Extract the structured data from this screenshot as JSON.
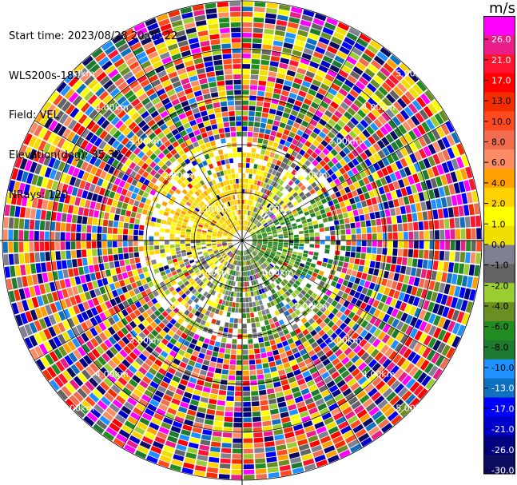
{
  "header": {
    "start_time": "Start time: 2023/08/28 20:00:22",
    "instrument": "WLS200s-181",
    "field": "Field: VEL",
    "elevation": "Elevation(deg): 35.30",
    "nrays": "NRays: 120"
  },
  "colorbar": {
    "unit": "m/s",
    "ticks": [
      "26.0",
      "21.0",
      "17.0",
      "13.0",
      "10.0",
      "8.0",
      "6.0",
      "4.0",
      "2.0",
      "1.0",
      "0.0",
      "-1.0",
      "-2.0",
      "-4.0",
      "-6.0",
      "-8.0",
      "-10.0",
      "-13.0",
      "-17.0",
      "-21.0",
      "-26.0",
      "-30.0"
    ],
    "colors": [
      "#ff00ff",
      "#e91e8a",
      "#ff1430",
      "#ff0000",
      "#f22d00",
      "#ff4a20",
      "#f26d50",
      "#fb8c64",
      "#ffa000",
      "#ffd200",
      "#ffff00",
      "#f0e000",
      "#7f8090",
      "#646464",
      "#9acd32",
      "#6b8e23",
      "#228b22",
      "#1e7a2e",
      "#1e90ff",
      "#1070c0",
      "#0000ff",
      "#0000cd",
      "#000080",
      "#0d0d60"
    ]
  },
  "ppi": {
    "ring_labels": [
      "1.00km",
      "2.00km",
      "3.00km",
      "4.00km",
      "5.00km"
    ],
    "rays": 120
  },
  "chart_data": {
    "type": "heatmap",
    "title": "",
    "field": "VEL",
    "unit": "m/s",
    "polar": true,
    "nrays": 120,
    "range_rings_km": [
      1,
      2,
      3,
      4,
      5
    ],
    "colorbar_levels": [
      26,
      21,
      17,
      13,
      10,
      8,
      6,
      4,
      2,
      1,
      0,
      -1,
      -2,
      -4,
      -6,
      -8,
      -10,
      -13,
      -17,
      -21,
      -26,
      -30
    ],
    "near_field_pattern": {
      "north_west": "positive (2 to 4 m/s, yellow)",
      "east": "negative (-4 to -8 m/s, green)",
      "south": "near zero / negative (gray, olive)"
    },
    "far_field": "noise (mixed colors)"
  }
}
